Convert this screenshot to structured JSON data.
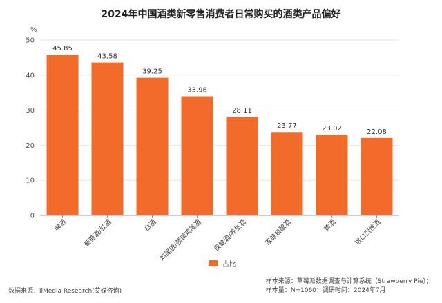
{
  "chart_data": {
    "type": "bar",
    "title": "2024年中国酒类新零售消费者日常购买的酒类产品偏好",
    "unit_label": "%",
    "categories": [
      "啤酒",
      "葡萄酒/红酒",
      "白酒",
      "鸡尾酒/预调鸡尾酒",
      "保健酒/养生酒",
      "家庭自酿酒",
      "黄酒",
      "进口烈性酒"
    ],
    "series": [
      {
        "name": "占比",
        "values": [
          45.85,
          43.58,
          39.25,
          33.96,
          28.11,
          23.77,
          23.02,
          22.08
        ]
      }
    ],
    "yticks": [
      0,
      10,
      20,
      30,
      40,
      50
    ],
    "ylim": [
      0,
      50
    ],
    "grid": true,
    "legend_position": "bottom-center",
    "colors": {
      "bar": "#f26b2b",
      "grid": "#e6e6e6",
      "axis": "#999999"
    }
  },
  "footer": {
    "source_left": "数据来源：iiMedia Research(艾媒咨询)",
    "sample_source": "样本来源：草莓派数据调查与计算系统（Strawberry Pie）；",
    "sample_size": "样本量：N=1060；调研时间：2024年7月"
  }
}
